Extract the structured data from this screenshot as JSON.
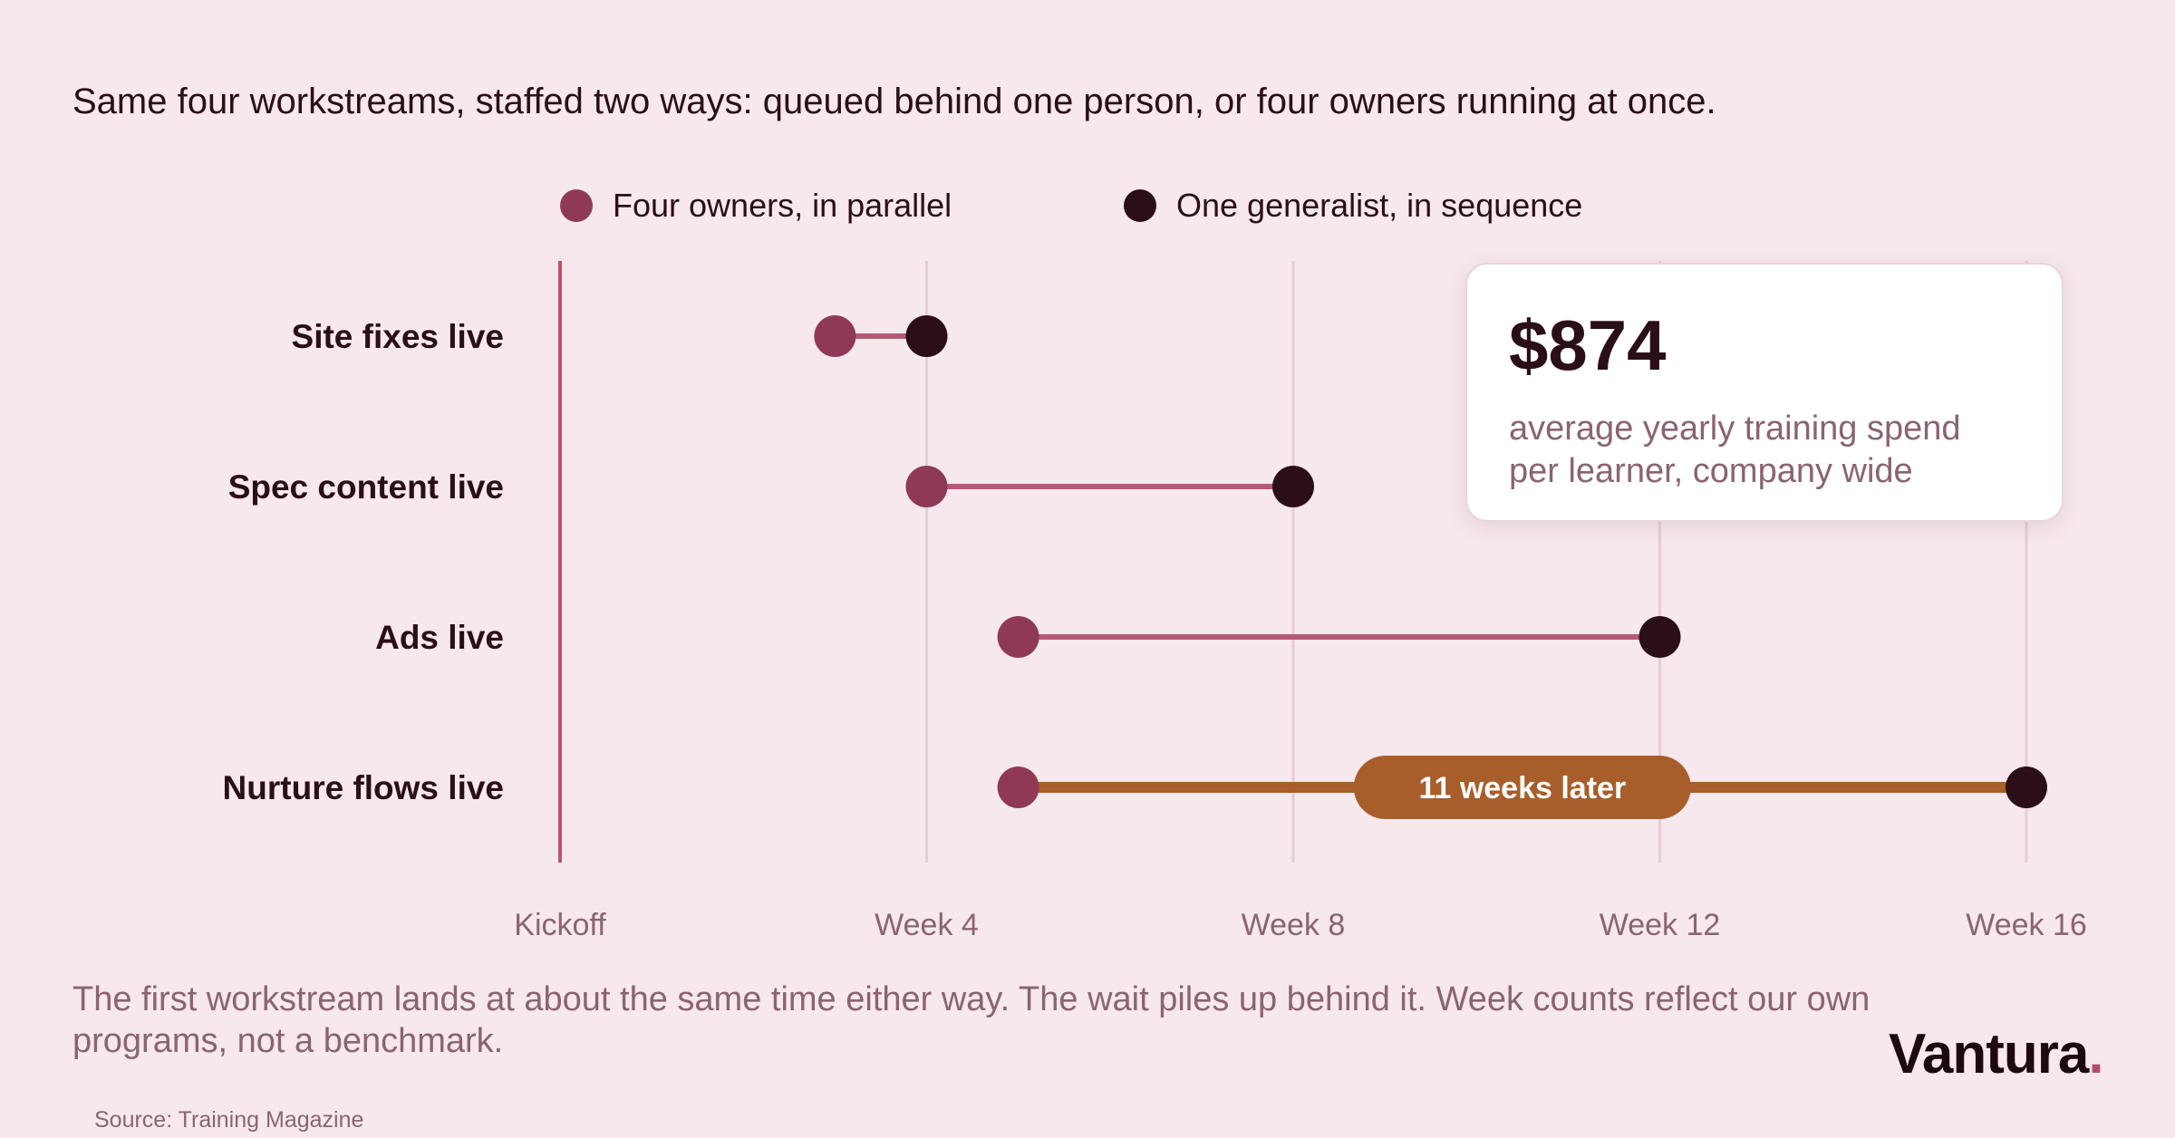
{
  "subtitle": "Same four workstreams, staffed two ways: queued behind one person, or four owners running at once.",
  "legend": [
    {
      "label": "Four owners, in parallel",
      "color": "#8e3a57"
    },
    {
      "label": "One generalist, in sequence",
      "color": "#2a0e18"
    }
  ],
  "callout": {
    "value": "$874",
    "text": "average yearly training spend per learner, company wide"
  },
  "note": "The first workstream lands at about the same time either way. The wait piles up behind it. Week counts reflect our own programs, not a benchmark.",
  "brand": {
    "name": "Vantura",
    "dot": "."
  },
  "source": "Source: Training Magazine",
  "colors": {
    "parallel": "#8e3a57",
    "sequence": "#2a0e18",
    "connector": "#b45a74",
    "highlight": "#a85e2a",
    "gridline": "#e6cdd5",
    "baseline": "#c0506e"
  },
  "chart_data": {
    "type": "dumbbell",
    "categories": [
      "Site fixes live",
      "Spec content live",
      "Ads live",
      "Nurture flows live"
    ],
    "series": [
      {
        "name": "Four owners, in parallel",
        "values": [
          3,
          4,
          5,
          5
        ]
      },
      {
        "name": "One generalist, in sequence",
        "values": [
          4,
          8,
          12,
          16
        ]
      }
    ],
    "x_ticks": [
      {
        "value": 0,
        "label": "Kickoff"
      },
      {
        "value": 4,
        "label": "Week 4"
      },
      {
        "value": 8,
        "label": "Week 8"
      },
      {
        "value": 12,
        "label": "Week 12"
      },
      {
        "value": 16,
        "label": "Week 16"
      }
    ],
    "xlim": [
      0,
      16
    ],
    "grid": true,
    "legend_position": "top",
    "annotation": {
      "category": "Nurture flows live",
      "text": "11 weeks later"
    }
  }
}
